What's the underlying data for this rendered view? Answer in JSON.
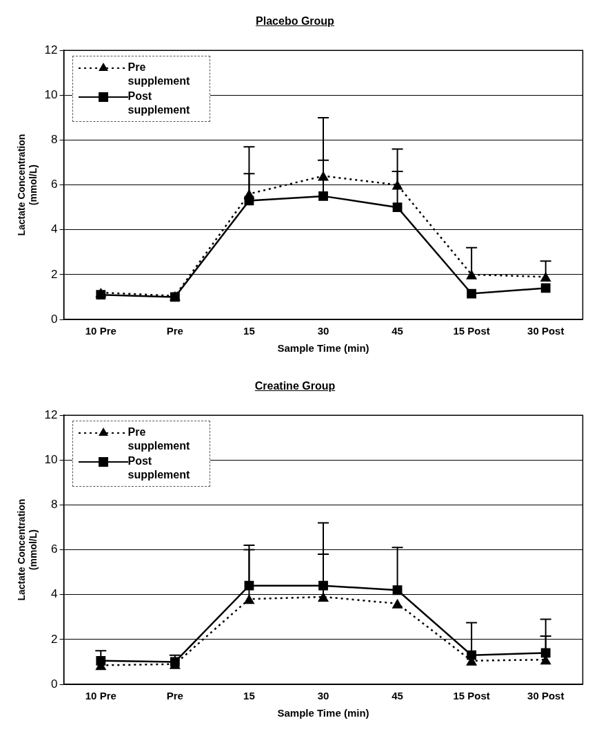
{
  "chart_data": [
    {
      "type": "line",
      "title": "Placebo Group",
      "xlabel": "Sample Time (min)",
      "ylabel": "Lactate Concentration (mmol/L)",
      "categories": [
        "10 Pre",
        "Pre",
        "15",
        "30",
        "45",
        "15 Post",
        "30 Post"
      ],
      "series": [
        {
          "name": "Pre supplement",
          "color": "#000000",
          "marker": "triangle",
          "line_style": "dotted",
          "values": [
            1.2,
            1.05,
            5.6,
            6.4,
            6.0,
            2.0,
            1.9
          ],
          "errors": [
            null,
            null,
            [
              5.6,
              7.7
            ],
            [
              6.4,
              9.0
            ],
            [
              6.0,
              7.6
            ],
            [
              2.0,
              3.2
            ],
            [
              1.9,
              2.6
            ]
          ]
        },
        {
          "name": "Post supplement",
          "color": "#000000",
          "marker": "square",
          "line_style": "solid",
          "values": [
            1.1,
            1.0,
            5.3,
            5.5,
            5.0,
            1.15,
            1.4
          ],
          "errors": [
            null,
            null,
            [
              5.3,
              6.5
            ],
            [
              5.5,
              7.1
            ],
            [
              5.0,
              6.6
            ],
            null,
            null
          ]
        }
      ],
      "ylim": [
        0,
        12
      ],
      "yticks": [
        0,
        2,
        4,
        6,
        8,
        10,
        12
      ],
      "grid": "y",
      "legend": "top left"
    },
    {
      "type": "line",
      "title": "Creatine Group",
      "xlabel": "Sample Time (min)",
      "ylabel": "Lactate Concentration (mmol/L)",
      "categories": [
        "10 Pre",
        "Pre",
        "15",
        "30",
        "45",
        "15 Post",
        "30 Post"
      ],
      "series": [
        {
          "name": "Pre supplement",
          "color": "#000000",
          "marker": "triangle",
          "line_style": "dotted",
          "values": [
            0.85,
            0.9,
            3.8,
            3.9,
            3.6,
            1.05,
            1.1
          ],
          "errors": [
            null,
            null,
            [
              3.8,
              6.0
            ],
            [
              3.9,
              5.8
            ],
            null,
            null,
            [
              1.1,
              2.15
            ]
          ]
        },
        {
          "name": "Post supplement",
          "color": "#000000",
          "marker": "square",
          "line_style": "solid",
          "values": [
            1.05,
            1.0,
            4.4,
            4.4,
            4.2,
            1.3,
            1.4
          ],
          "errors": [
            [
              1.05,
              1.5
            ],
            [
              1.0,
              1.3
            ],
            [
              4.4,
              6.2
            ],
            [
              4.4,
              7.2
            ],
            [
              4.2,
              6.1
            ],
            [
              1.3,
              2.75
            ],
            [
              1.4,
              2.9
            ]
          ]
        }
      ],
      "ylim": [
        0,
        12
      ],
      "yticks": [
        0,
        2,
        4,
        6,
        8,
        10,
        12
      ],
      "grid": "y",
      "legend": "top left"
    }
  ]
}
